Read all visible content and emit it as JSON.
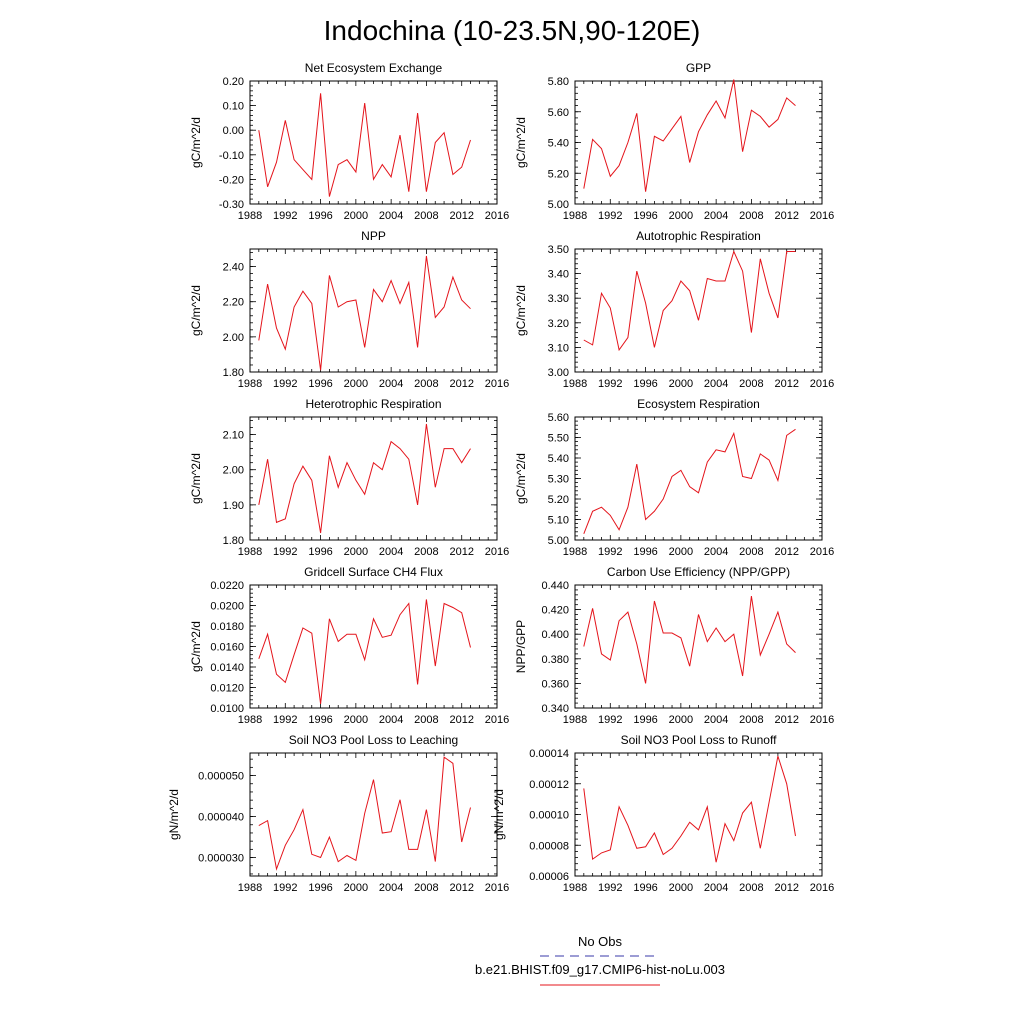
{
  "figure": {
    "title": "Indochina (10-23.5N,90-120E)",
    "series_color": "#e4141b",
    "obs_color": "#3a3aa8",
    "legend": {
      "obs_label": "No Obs",
      "model_label": "b.e21.BHIST.f09_g17.CMIP6-hist-noLu.003"
    }
  },
  "chart_data": [
    {
      "type": "line",
      "title": "Net Ecosystem Exchange",
      "ylabel": "gC/m^2/d",
      "xlim": [
        1988,
        2016
      ],
      "xticks": [
        1988,
        1992,
        1996,
        2000,
        2004,
        2008,
        2012,
        2016
      ],
      "ylim": [
        -0.3,
        0.2
      ],
      "yticks": [
        -0.3,
        -0.2,
        -0.1,
        0.0,
        0.1,
        0.2
      ],
      "ytick_labels": [
        "-0.30",
        "-0.20",
        "-0.10",
        "0.00",
        "0.10",
        "0.20"
      ],
      "x": [
        1989,
        1990,
        1991,
        1992,
        1993,
        1994,
        1995,
        1996,
        1997,
        1998,
        1999,
        2000,
        2001,
        2002,
        2003,
        2004,
        2005,
        2006,
        2007,
        2008,
        2009,
        2010,
        2011,
        2012,
        2013
      ],
      "y": [
        0.0,
        -0.23,
        -0.13,
        0.04,
        -0.12,
        -0.16,
        -0.2,
        0.15,
        -0.27,
        -0.14,
        -0.12,
        -0.17,
        0.11,
        -0.2,
        -0.14,
        -0.19,
        -0.02,
        -0.25,
        0.07,
        -0.25,
        -0.05,
        -0.01,
        -0.18,
        -0.15,
        -0.04
      ]
    },
    {
      "type": "line",
      "title": "GPP",
      "ylabel": "gC/m^2/d",
      "xlim": [
        1988,
        2016
      ],
      "xticks": [
        1988,
        1992,
        1996,
        2000,
        2004,
        2008,
        2012,
        2016
      ],
      "ylim": [
        5.0,
        5.8
      ],
      "yticks": [
        5.0,
        5.2,
        5.4,
        5.6,
        5.8
      ],
      "ytick_labels": [
        "5.00",
        "5.20",
        "5.40",
        "5.60",
        "5.80"
      ],
      "x": [
        1989,
        1990,
        1991,
        1992,
        1993,
        1994,
        1995,
        1996,
        1997,
        1998,
        1999,
        2000,
        2001,
        2002,
        2003,
        2004,
        2005,
        2006,
        2007,
        2008,
        2009,
        2010,
        2011,
        2012,
        2013
      ],
      "y": [
        5.1,
        5.42,
        5.36,
        5.18,
        5.25,
        5.4,
        5.59,
        5.08,
        5.44,
        5.41,
        5.49,
        5.57,
        5.27,
        5.47,
        5.58,
        5.67,
        5.56,
        5.81,
        5.34,
        5.61,
        5.57,
        5.5,
        5.55,
        5.69,
        5.64
      ]
    },
    {
      "type": "line",
      "title": "NPP",
      "ylabel": "gC/m^2/d",
      "xlim": [
        1988,
        2016
      ],
      "xticks": [
        1988,
        1992,
        1996,
        2000,
        2004,
        2008,
        2012,
        2016
      ],
      "ylim": [
        1.8,
        2.5
      ],
      "yticks": [
        1.8,
        2.0,
        2.2,
        2.4
      ],
      "ytick_labels": [
        "1.80",
        "2.00",
        "2.20",
        "2.40"
      ],
      "x": [
        1989,
        1990,
        1991,
        1992,
        1993,
        1994,
        1995,
        1996,
        1997,
        1998,
        1999,
        2000,
        2001,
        2002,
        2003,
        2004,
        2005,
        2006,
        2007,
        2008,
        2009,
        2010,
        2011,
        2012,
        2013
      ],
      "y": [
        1.98,
        2.3,
        2.05,
        1.93,
        2.17,
        2.26,
        2.19,
        1.81,
        2.35,
        2.17,
        2.2,
        2.21,
        1.94,
        2.27,
        2.2,
        2.32,
        2.19,
        2.31,
        1.94,
        2.46,
        2.11,
        2.17,
        2.34,
        2.21,
        2.16
      ]
    },
    {
      "type": "line",
      "title": "Autotrophic Respiration",
      "ylabel": "gC/m^2/d",
      "xlim": [
        1988,
        2016
      ],
      "xticks": [
        1988,
        1992,
        1996,
        2000,
        2004,
        2008,
        2012,
        2016
      ],
      "ylim": [
        3.0,
        3.5
      ],
      "yticks": [
        3.0,
        3.1,
        3.2,
        3.3,
        3.4,
        3.5
      ],
      "ytick_labels": [
        "3.00",
        "3.10",
        "3.20",
        "3.30",
        "3.40",
        "3.50"
      ],
      "x": [
        1989,
        1990,
        1991,
        1992,
        1993,
        1994,
        1995,
        1996,
        1997,
        1998,
        1999,
        2000,
        2001,
        2002,
        2003,
        2004,
        2005,
        2006,
        2007,
        2008,
        2009,
        2010,
        2011,
        2012,
        2013
      ],
      "y": [
        3.13,
        3.11,
        3.32,
        3.26,
        3.09,
        3.14,
        3.41,
        3.28,
        3.1,
        3.25,
        3.29,
        3.37,
        3.33,
        3.21,
        3.38,
        3.37,
        3.37,
        3.49,
        3.41,
        3.16,
        3.46,
        3.32,
        3.22,
        3.49,
        3.49
      ]
    },
    {
      "type": "line",
      "title": "Heterotrophic Respiration",
      "ylabel": "gC/m^2/d",
      "xlim": [
        1988,
        2016
      ],
      "xticks": [
        1988,
        1992,
        1996,
        2000,
        2004,
        2008,
        2012,
        2016
      ],
      "ylim": [
        1.8,
        2.15
      ],
      "yticks": [
        1.8,
        1.9,
        2.0,
        2.1
      ],
      "ytick_labels": [
        "1.80",
        "1.90",
        "2.00",
        "2.10"
      ],
      "x": [
        1989,
        1990,
        1991,
        1992,
        1993,
        1994,
        1995,
        1996,
        1997,
        1998,
        1999,
        2000,
        2001,
        2002,
        2003,
        2004,
        2005,
        2006,
        2007,
        2008,
        2009,
        2010,
        2011,
        2012,
        2013
      ],
      "y": [
        1.9,
        2.03,
        1.85,
        1.86,
        1.96,
        2.01,
        1.97,
        1.82,
        2.04,
        1.95,
        2.02,
        1.97,
        1.93,
        2.02,
        2.0,
        2.08,
        2.06,
        2.03,
        1.9,
        2.13,
        1.95,
        2.06,
        2.06,
        2.02,
        2.06
      ]
    },
    {
      "type": "line",
      "title": "Ecosystem Respiration",
      "ylabel": "gC/m^2/d",
      "xlim": [
        1988,
        2016
      ],
      "xticks": [
        1988,
        1992,
        1996,
        2000,
        2004,
        2008,
        2012,
        2016
      ],
      "ylim": [
        5.0,
        5.6
      ],
      "yticks": [
        5.0,
        5.1,
        5.2,
        5.3,
        5.4,
        5.5,
        5.6
      ],
      "ytick_labels": [
        "5.00",
        "5.10",
        "5.20",
        "5.30",
        "5.40",
        "5.50",
        "5.60"
      ],
      "x": [
        1989,
        1990,
        1991,
        1992,
        1993,
        1994,
        1995,
        1996,
        1997,
        1998,
        1999,
        2000,
        2001,
        2002,
        2003,
        2004,
        2005,
        2006,
        2007,
        2008,
        2009,
        2010,
        2011,
        2012,
        2013
      ],
      "y": [
        5.03,
        5.14,
        5.16,
        5.12,
        5.05,
        5.16,
        5.37,
        5.1,
        5.14,
        5.2,
        5.31,
        5.34,
        5.26,
        5.23,
        5.38,
        5.44,
        5.43,
        5.52,
        5.31,
        5.3,
        5.42,
        5.39,
        5.29,
        5.51,
        5.54
      ]
    },
    {
      "type": "line",
      "title": "Gridcell Surface CH4 Flux",
      "ylabel": "gC/m^2/d",
      "xlim": [
        1988,
        2016
      ],
      "xticks": [
        1988,
        1992,
        1996,
        2000,
        2004,
        2008,
        2012,
        2016
      ],
      "ylim": [
        0.01,
        0.022
      ],
      "yticks": [
        0.01,
        0.012,
        0.014,
        0.016,
        0.018,
        0.02,
        0.022
      ],
      "ytick_labels": [
        "0.0100",
        "0.0120",
        "0.0140",
        "0.0160",
        "0.0180",
        "0.0200",
        "0.0220"
      ],
      "x": [
        1989,
        1990,
        1991,
        1992,
        1993,
        1994,
        1995,
        1996,
        1997,
        1998,
        1999,
        2000,
        2001,
        2002,
        2003,
        2004,
        2005,
        2006,
        2007,
        2008,
        2009,
        2010,
        2011,
        2012,
        2013
      ],
      "y": [
        0.0148,
        0.0172,
        0.0133,
        0.0125,
        0.0152,
        0.0178,
        0.0173,
        0.0104,
        0.0187,
        0.0165,
        0.0172,
        0.0172,
        0.0147,
        0.0187,
        0.0169,
        0.0171,
        0.0191,
        0.0202,
        0.0123,
        0.0206,
        0.0141,
        0.0202,
        0.0198,
        0.0193,
        0.0159
      ]
    },
    {
      "type": "line",
      "title": "Carbon Use Efficiency (NPP/GPP)",
      "ylabel": "NPP/GPP",
      "xlim": [
        1988,
        2016
      ],
      "xticks": [
        1988,
        1992,
        1996,
        2000,
        2004,
        2008,
        2012,
        2016
      ],
      "ylim": [
        0.34,
        0.44
      ],
      "yticks": [
        0.34,
        0.36,
        0.38,
        0.4,
        0.42,
        0.44
      ],
      "ytick_labels": [
        "0.340",
        "0.360",
        "0.380",
        "0.400",
        "0.420",
        "0.440"
      ],
      "x": [
        1989,
        1990,
        1991,
        1992,
        1993,
        1994,
        1995,
        1996,
        1997,
        1998,
        1999,
        2000,
        2001,
        2002,
        2003,
        2004,
        2005,
        2006,
        2007,
        2008,
        2009,
        2010,
        2011,
        2012,
        2013
      ],
      "y": [
        0.39,
        0.421,
        0.384,
        0.379,
        0.411,
        0.418,
        0.392,
        0.36,
        0.427,
        0.401,
        0.401,
        0.397,
        0.374,
        0.416,
        0.394,
        0.405,
        0.394,
        0.4,
        0.366,
        0.431,
        0.383,
        0.4,
        0.418,
        0.392,
        0.385
      ]
    },
    {
      "type": "line",
      "title": "Soil NO3 Pool Loss to Leaching",
      "ylabel": "gN/m^2/d",
      "xlim": [
        1988,
        2016
      ],
      "xticks": [
        1988,
        1992,
        1996,
        2000,
        2004,
        2008,
        2012,
        2016
      ],
      "ylim": [
        2.55e-05,
        5.55e-05
      ],
      "yticks": [
        3e-05,
        4e-05,
        5e-05
      ],
      "ytick_labels": [
        "0.000030",
        "0.000040",
        "0.000050"
      ],
      "x": [
        1989,
        1990,
        1991,
        1992,
        1993,
        1994,
        1995,
        1996,
        1997,
        1998,
        1999,
        2000,
        2001,
        2002,
        2003,
        2004,
        2005,
        2006,
        2007,
        2008,
        2009,
        2010,
        2011,
        2012,
        2013
      ],
      "y": [
        3.78e-05,
        3.9e-05,
        2.72e-05,
        3.3e-05,
        3.68e-05,
        4.17e-05,
        3.08e-05,
        3e-05,
        3.5e-05,
        2.9e-05,
        3.05e-05,
        2.93e-05,
        4.08e-05,
        4.9e-05,
        3.6e-05,
        3.63e-05,
        4.41e-05,
        3.2e-05,
        3.2e-05,
        4.17e-05,
        2.9e-05,
        5.45e-05,
        5.3e-05,
        3.38e-05,
        4.22e-05
      ]
    },
    {
      "type": "line",
      "title": "Soil NO3 Pool Loss to Runoff",
      "ylabel": "gN/m^2/d",
      "xlim": [
        1988,
        2016
      ],
      "xticks": [
        1988,
        1992,
        1996,
        2000,
        2004,
        2008,
        2012,
        2016
      ],
      "ylim": [
        6e-05,
        0.00014
      ],
      "yticks": [
        6e-05,
        8e-05,
        0.0001,
        0.00012,
        0.00014
      ],
      "ytick_labels": [
        "0.00006",
        "0.00008",
        "0.00010",
        "0.00012",
        "0.00014"
      ],
      "x": [
        1989,
        1990,
        1991,
        1992,
        1993,
        1994,
        1995,
        1996,
        1997,
        1998,
        1999,
        2000,
        2001,
        2002,
        2003,
        2004,
        2005,
        2006,
        2007,
        2008,
        2009,
        2010,
        2011,
        2012,
        2013
      ],
      "y": [
        0.000117,
        7.1e-05,
        7.5e-05,
        7.7e-05,
        0.000105,
        9.3e-05,
        7.8e-05,
        7.9e-05,
        8.8e-05,
        7.4e-05,
        7.8e-05,
        8.6e-05,
        9.5e-05,
        9e-05,
        0.000105,
        6.9e-05,
        9.4e-05,
        8.3e-05,
        0.000101,
        0.000108,
        7.8e-05,
        0.000108,
        0.000138,
        0.00012,
        8.6e-05
      ]
    }
  ]
}
